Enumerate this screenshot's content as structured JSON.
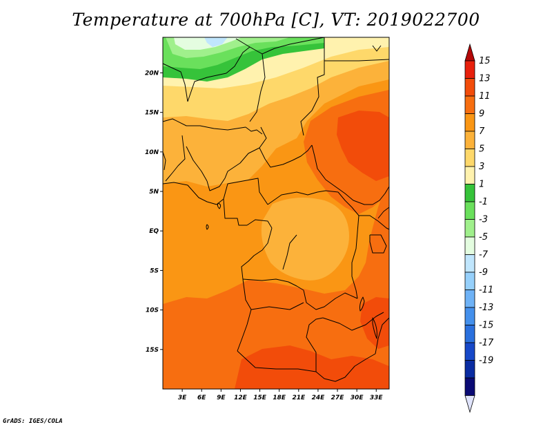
{
  "map": {
    "title": "Temperature at 700hPa [C], VT: 2019022700",
    "credit": "GrADS: IGES/COLA",
    "variable": "Temperature",
    "level": "700hPa",
    "units": "C",
    "valid_time": "2019022700",
    "lon_range": [
      0,
      35
    ],
    "lat_range": [
      -20,
      24.5
    ],
    "lat_ticks": [
      {
        "value": 20,
        "label": "20N"
      },
      {
        "value": 15,
        "label": "15N"
      },
      {
        "value": 10,
        "label": "10N"
      },
      {
        "value": 5,
        "label": "5N"
      },
      {
        "value": 0,
        "label": "EQ"
      },
      {
        "value": -5,
        "label": "5S"
      },
      {
        "value": -10,
        "label": "10S"
      },
      {
        "value": -15,
        "label": "15S"
      }
    ],
    "lon_ticks": [
      {
        "value": 3,
        "label": "3E"
      },
      {
        "value": 6,
        "label": "6E"
      },
      {
        "value": 9,
        "label": "9E"
      },
      {
        "value": 12,
        "label": "12E"
      },
      {
        "value": 15,
        "label": "15E"
      },
      {
        "value": 18,
        "label": "18E"
      },
      {
        "value": 21,
        "label": "21E"
      },
      {
        "value": 24,
        "label": "24E"
      },
      {
        "value": 27,
        "label": "27E"
      },
      {
        "value": 30,
        "label": "30E"
      },
      {
        "value": 33,
        "label": "33E"
      }
    ]
  },
  "colorbar": {
    "levels": [
      "15",
      "13",
      "11",
      "9",
      "7",
      "5",
      "3",
      "1",
      "-1",
      "-3",
      "-5",
      "-7",
      "-9",
      "-11",
      "-13",
      "-15",
      "-17",
      "-19"
    ],
    "colors": [
      "#e8200c",
      "#f24c0a",
      "#f76e10",
      "#fa9614",
      "#fcb23a",
      "#fed86a",
      "#fff2ae",
      "#36c33a",
      "#6ae05c",
      "#a0f08c",
      "#e4fde0",
      "#c0e6fd",
      "#96d0fb",
      "#6eb2f6",
      "#4490ec",
      "#2a70de",
      "#1648c8",
      "#0a2ca2",
      "#0a0a74"
    ],
    "top_arrow_color": "#b40808",
    "bottom_arrow_color": "#e0e4fc"
  }
}
